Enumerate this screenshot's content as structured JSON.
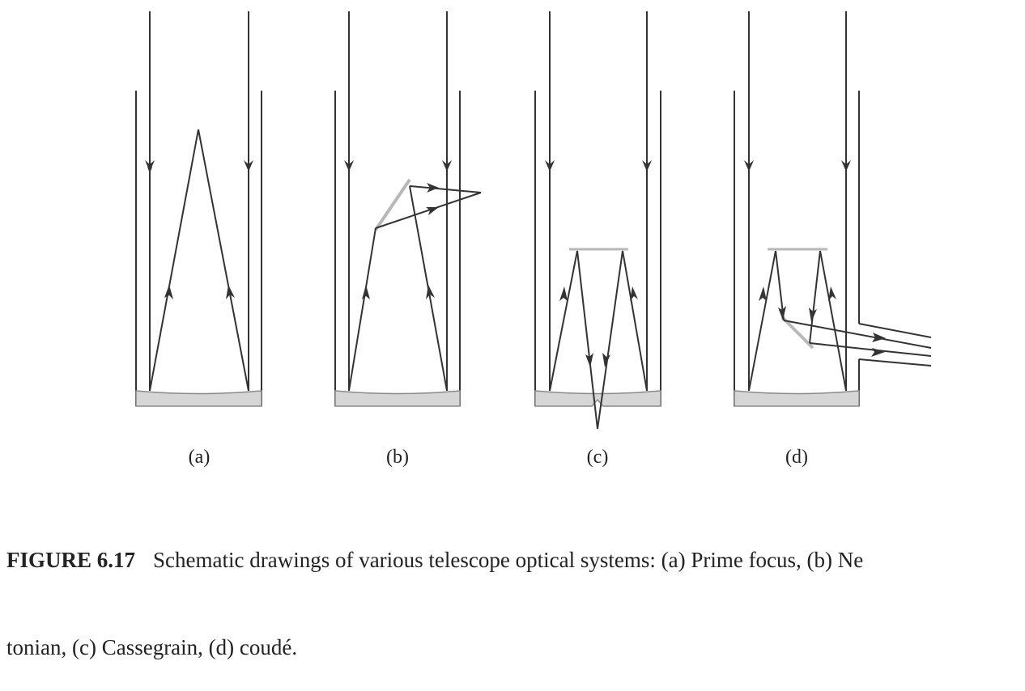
{
  "panels": [
    {
      "label": "(a)"
    },
    {
      "label": "(b)"
    },
    {
      "label": "(c)"
    },
    {
      "label": "(d)"
    }
  ],
  "caption": {
    "figure_number": "FIGURE 6.17",
    "line1": "Schematic drawings of various telescope optical systems: (a) Prime focus, (b) Ne",
    "line2": "tonian, (c) Cassegrain, (d) coudé."
  },
  "colors": {
    "line": "#333333",
    "mirror_fill": "#d6d6d6",
    "mirror_stroke": "#8a8a8a",
    "secondary": "#b8b8b8"
  }
}
